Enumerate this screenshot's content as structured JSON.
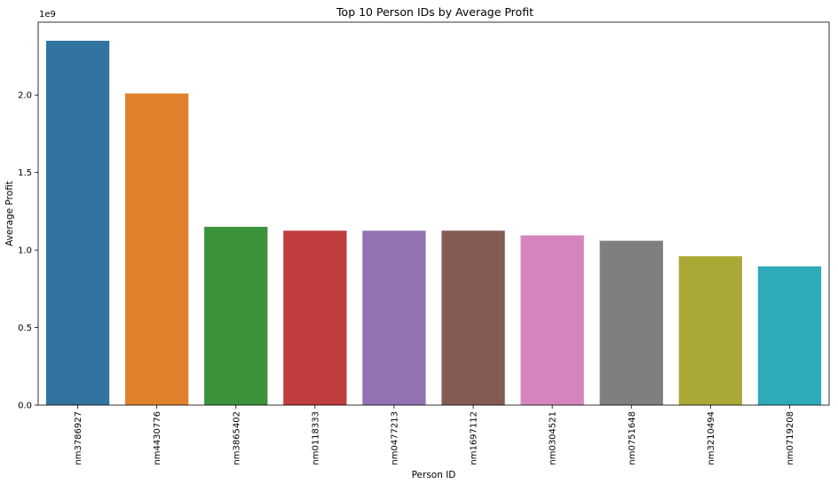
{
  "chart_data": {
    "type": "bar",
    "title": "Top 10 Person IDs by Average Profit",
    "xlabel": "Person ID",
    "ylabel": "Average Profit",
    "scale_label": "1e9",
    "ylim": [
      0,
      2.47
    ],
    "yticks": [
      0.0,
      0.5,
      1.0,
      1.5,
      2.0
    ],
    "ytick_labels": [
      "0.0",
      "0.5",
      "1.0",
      "1.5",
      "2.0"
    ],
    "grid": false,
    "categories": [
      "nm3786927",
      "nm4430776",
      "nm3865402",
      "nm0118333",
      "nm0477213",
      "nm1697112",
      "nm0304521",
      "nm0751648",
      "nm3210494",
      "nm0719208"
    ],
    "values": [
      2.35,
      2.01,
      1.15,
      1.125,
      1.125,
      1.125,
      1.095,
      1.06,
      0.96,
      0.895
    ],
    "colors": [
      "#3274a1",
      "#e1812c",
      "#3a923a",
      "#c03d3e",
      "#9372b2",
      "#845b53",
      "#d684bd",
      "#7f7f7f",
      "#a9aa35",
      "#2eaab8"
    ]
  }
}
